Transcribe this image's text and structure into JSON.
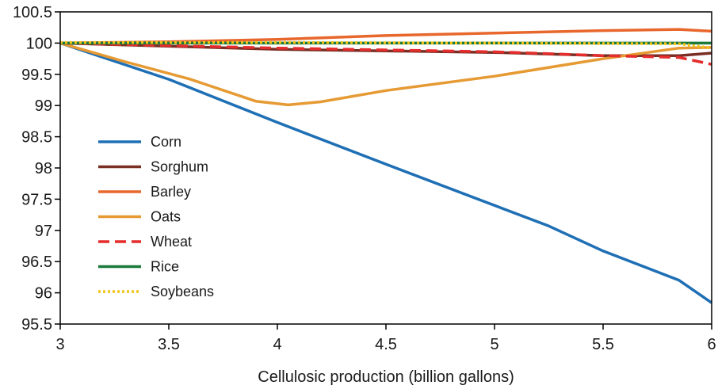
{
  "chart_data": {
    "type": "line",
    "title": "",
    "xlabel": "Cellulosic production (billion gallons)",
    "ylabel": "",
    "xlim": [
      3,
      6
    ],
    "ylim": [
      95.5,
      100.5
    ],
    "x_ticks": [
      3,
      3.5,
      4,
      4.5,
      5,
      5.5,
      6
    ],
    "x_tick_labels": [
      "3",
      "3.5",
      "4",
      "4.5",
      "5",
      "5.5",
      "6"
    ],
    "y_ticks": [
      95.5,
      96,
      96.5,
      97,
      97.5,
      98,
      98.5,
      99,
      99.5,
      100,
      100.5
    ],
    "y_tick_labels": [
      "95.5",
      "96",
      "96.5",
      "97",
      "97.5",
      "98",
      "98.5",
      "99",
      "99.5",
      "100",
      "100.5"
    ],
    "grid": false,
    "legend_position": "left-middle",
    "series": [
      {
        "name": "Corn",
        "color": "#1f6fb5",
        "dash": "solid",
        "points": [
          [
            3,
            100
          ],
          [
            3.5,
            99.42
          ],
          [
            4,
            98.73
          ],
          [
            4.5,
            98.06
          ],
          [
            5,
            97.4
          ],
          [
            5.25,
            97.07
          ],
          [
            5.5,
            96.67
          ],
          [
            5.85,
            96.2
          ],
          [
            6,
            95.84
          ]
        ]
      },
      {
        "name": "Sorghum",
        "color": "#7a2e24",
        "dash": "solid",
        "points": [
          [
            3,
            100
          ],
          [
            4,
            99.9
          ],
          [
            5,
            99.85
          ],
          [
            5.5,
            99.8
          ],
          [
            5.85,
            99.8
          ],
          [
            6,
            99.84
          ]
        ]
      },
      {
        "name": "Barley",
        "color": "#e8672c",
        "dash": "solid",
        "points": [
          [
            3,
            100
          ],
          [
            3.5,
            100.02
          ],
          [
            4,
            100.06
          ],
          [
            4.5,
            100.12
          ],
          [
            5,
            100.16
          ],
          [
            5.5,
            100.2
          ],
          [
            5.85,
            100.22
          ],
          [
            6,
            100.19
          ]
        ]
      },
      {
        "name": "Oats",
        "color": "#e69a33",
        "dash": "solid",
        "points": [
          [
            3,
            100
          ],
          [
            3.3,
            99.7
          ],
          [
            3.6,
            99.42
          ],
          [
            3.9,
            99.07
          ],
          [
            4.05,
            99.01
          ],
          [
            4.2,
            99.06
          ],
          [
            4.5,
            99.24
          ],
          [
            5,
            99.47
          ],
          [
            5.5,
            99.75
          ],
          [
            5.85,
            99.92
          ],
          [
            6,
            99.93
          ]
        ]
      },
      {
        "name": "Wheat",
        "color": "#e52d2d",
        "dash": "dashed",
        "points": [
          [
            3,
            100
          ],
          [
            4,
            99.92
          ],
          [
            5,
            99.86
          ],
          [
            5.5,
            99.8
          ],
          [
            5.85,
            99.77
          ],
          [
            6,
            99.66
          ]
        ]
      },
      {
        "name": "Rice",
        "color": "#1b7a3a",
        "dash": "solid",
        "points": [
          [
            3,
            100
          ],
          [
            6,
            100
          ]
        ]
      },
      {
        "name": "Soybeans",
        "color": "#f2c318",
        "dash": "dotted",
        "points": [
          [
            3,
            100.01
          ],
          [
            4,
            100.01
          ],
          [
            5,
            100.0
          ],
          [
            5.85,
            99.99
          ],
          [
            6,
            99.92
          ]
        ]
      }
    ]
  }
}
